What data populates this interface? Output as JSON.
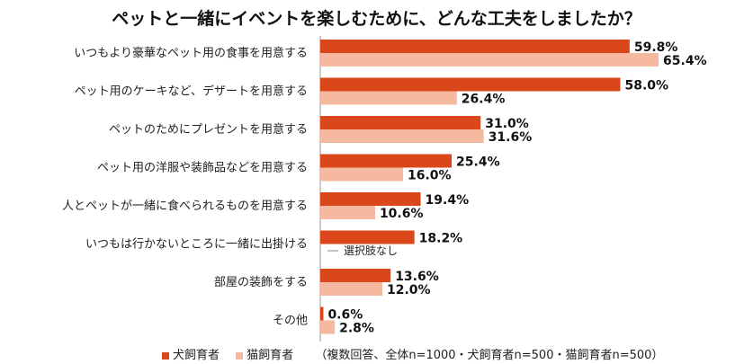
{
  "chart_data": {
    "type": "bar",
    "orientation": "horizontal",
    "title": "ペットと一緒にイベントを楽しむために、どんな工夫をしましたか？",
    "categories": [
      "いつもより豪華なペット用の食事を用意する",
      "ペット用のケーキなど、デザートを用意する",
      "ペットのためにプレゼントを用意する",
      "ペット用の洋服や装飾品などを用意する",
      "人とペットが一緒に食べられるものを用意する",
      "いつもは行かないところに一緒に出掛ける",
      "部屋の装飾をする",
      "その他"
    ],
    "series": [
      {
        "name": "犬飼育者",
        "color": "#d9471a",
        "values": [
          59.8,
          58.0,
          31.0,
          25.4,
          19.4,
          18.2,
          13.6,
          0.6
        ],
        "labels": [
          "59.8%",
          "58.0%",
          "31.0%",
          "25.4%",
          "19.4%",
          "18.2%",
          "13.6%",
          "0.6%"
        ]
      },
      {
        "name": "猫飼育者",
        "color": "#f4b9a0",
        "values": [
          65.4,
          26.4,
          31.6,
          16.0,
          10.6,
          null,
          12.0,
          2.8
        ],
        "labels": [
          "65.4%",
          "26.4%",
          "31.6%",
          "16.0%",
          "10.6%",
          null,
          "12.0%",
          "2.8%"
        ]
      }
    ],
    "annotation": "選択肢なし",
    "note": "（複数回答、全体n=1000・犬飼育者n=500・猫飼育者n=500）",
    "xlim": [
      0,
      100
    ],
    "grid": false,
    "legend_position": "bottom"
  }
}
